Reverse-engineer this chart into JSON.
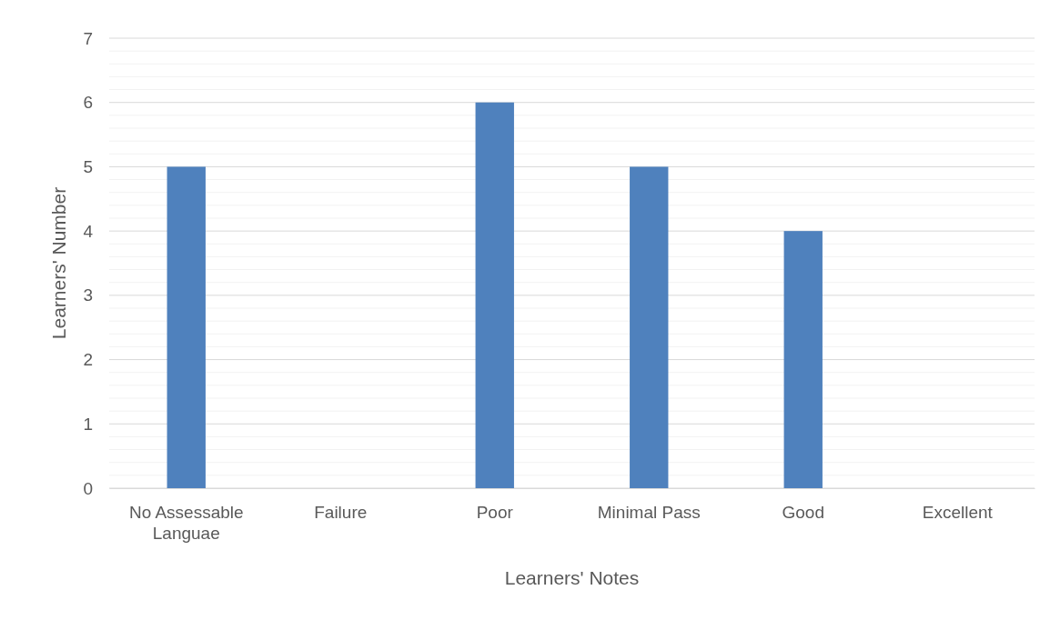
{
  "chart_data": {
    "type": "bar",
    "xlabel": "Learners' Notes",
    "ylabel": "Learners' Number",
    "categories": [
      "No Assessable Languae",
      "Failure",
      "Poor",
      "Minimal Pass",
      "Good",
      "Excellent"
    ],
    "values": [
      5,
      0,
      6,
      5,
      4,
      0
    ],
    "color": "#4f81bd",
    "ylim": [
      0,
      7
    ],
    "yticks": [
      0,
      {
        "value": 0.2,
        "label": null
      },
      {
        "value": 0.4,
        "label": null
      },
      {
        "value": 0.6,
        "label": null
      },
      {
        "value": 0.8,
        "label": null
      },
      1,
      {
        "value": 1.2,
        "label": null
      },
      {
        "value": 1.4,
        "label": null
      },
      {
        "value": 1.6,
        "label": null
      },
      {
        "value": 1.8,
        "label": null
      },
      2,
      {
        "value": 2.2,
        "label": null
      },
      {
        "value": 2.4,
        "label": null
      },
      {
        "value": 2.6,
        "label": null
      },
      {
        "value": 2.8,
        "label": null
      },
      3,
      {
        "value": 3.2,
        "label": null
      },
      {
        "value": 3.4,
        "label": null
      },
      {
        "value": 3.6,
        "label": null
      },
      {
        "value": 3.8,
        "label": null
      },
      4,
      {
        "value": 4.2,
        "label": null
      },
      {
        "value": 4.4,
        "label": null
      },
      {
        "value": 4.6,
        "label": null
      },
      {
        "value": 4.8,
        "label": null
      },
      5,
      {
        "value": 5.2,
        "label": null
      },
      {
        "value": 5.4,
        "label": null
      },
      {
        "value": 5.6,
        "label": null
      },
      {
        "value": 5.8,
        "label": null
      },
      6,
      {
        "value": 6.2,
        "label": null
      },
      {
        "value": 6.4,
        "label": null
      },
      {
        "value": 6.6,
        "label": null
      },
      {
        "value": 6.8,
        "label": null
      },
      7
    ],
    "grid": true
  }
}
